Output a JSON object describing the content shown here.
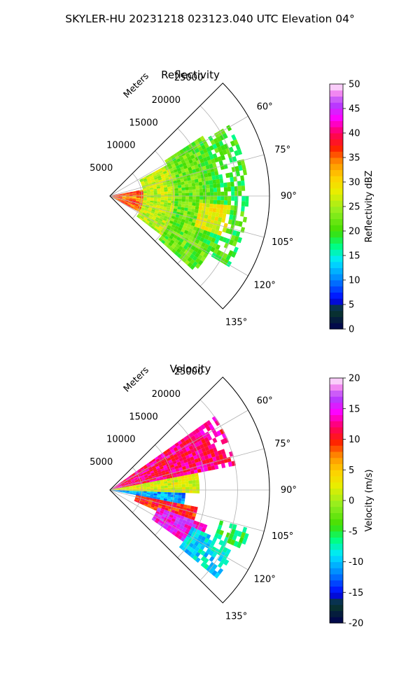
{
  "suptitle": "SKYLER-HU  20231218  023123.040 UTC Elevation 04°",
  "chart_data": [
    {
      "type": "heatmap",
      "projection": "polar-sector",
      "title": "Reflectivity",
      "range_axis_label": "Meters",
      "range_ticks": [
        5000,
        10000,
        15000,
        20000,
        25000
      ],
      "range_lim": [
        0,
        25000
      ],
      "azimuth_ticks": [
        "60°",
        "75°",
        "90°",
        "105°",
        "120°",
        "135°"
      ],
      "azimuth_range_deg": [
        45,
        135
      ],
      "grid": true,
      "colorbar": {
        "label": "Reflectivity dBZ",
        "ticks": [
          0,
          5,
          10,
          15,
          20,
          25,
          30,
          35,
          40,
          45,
          50
        ],
        "lim": [
          0,
          50
        ],
        "colormap": "NWS reflectivity (navy → blue → cyan → green → yellow → orange → red → magenta → pink)"
      },
      "field": [
        {
          "r_km": [
            0,
            5
          ],
          "az_deg": [
            80,
            118
          ],
          "value": 36,
          "note": "core near radar"
        },
        {
          "r_km": [
            2,
            7
          ],
          "az_deg": [
            88,
            100
          ],
          "value": 34
        },
        {
          "r_km": [
            5,
            12
          ],
          "az_deg": [
            62,
            128
          ],
          "value": 26
        },
        {
          "r_km": [
            10,
            18
          ],
          "az_deg": [
            58,
            132
          ],
          "value": 22
        },
        {
          "r_km": [
            16,
            22
          ],
          "az_deg": [
            60,
            120
          ],
          "value": 20
        },
        {
          "r_km": [
            14,
            19
          ],
          "az_deg": [
            95,
            110
          ],
          "value": 28
        }
      ]
    },
    {
      "type": "heatmap",
      "projection": "polar-sector",
      "title": "Velocity",
      "range_axis_label": "Meters",
      "range_ticks": [
        5000,
        10000,
        15000,
        20000,
        25000
      ],
      "range_lim": [
        0,
        25000
      ],
      "azimuth_ticks": [
        "60°",
        "75°",
        "90°",
        "105°",
        "120°",
        "135°"
      ],
      "azimuth_range_deg": [
        45,
        135
      ],
      "grid": true,
      "colorbar": {
        "label": "Velocity (m/s)",
        "ticks": [
          -20,
          -15,
          -10,
          -5,
          0,
          5,
          10,
          15,
          20
        ],
        "lim": [
          -20,
          20
        ],
        "colormap": "velocity (navy → blue → cyan → green → yellow → orange → red → magenta → pink)"
      },
      "field": [
        {
          "r_km": [
            0,
            20
          ],
          "az_deg": [
            55,
            80
          ],
          "value": 12,
          "note": "outbound red/magenta band"
        },
        {
          "r_km": [
            0,
            14
          ],
          "az_deg": [
            80,
            92
          ],
          "value": 2
        },
        {
          "r_km": [
            0,
            12
          ],
          "az_deg": [
            92,
            100
          ],
          "value": -11,
          "note": "inbound cyan"
        },
        {
          "r_km": [
            4,
            14
          ],
          "az_deg": [
            100,
            115
          ],
          "value": 10
        },
        {
          "r_km": [
            8,
            16
          ],
          "az_deg": [
            110,
            125
          ],
          "value": 15
        },
        {
          "r_km": [
            14,
            22
          ],
          "az_deg": [
            115,
            130
          ],
          "value": -9
        },
        {
          "r_km": [
            18,
            23
          ],
          "az_deg": [
            105,
            115
          ],
          "value": -5
        }
      ]
    }
  ]
}
